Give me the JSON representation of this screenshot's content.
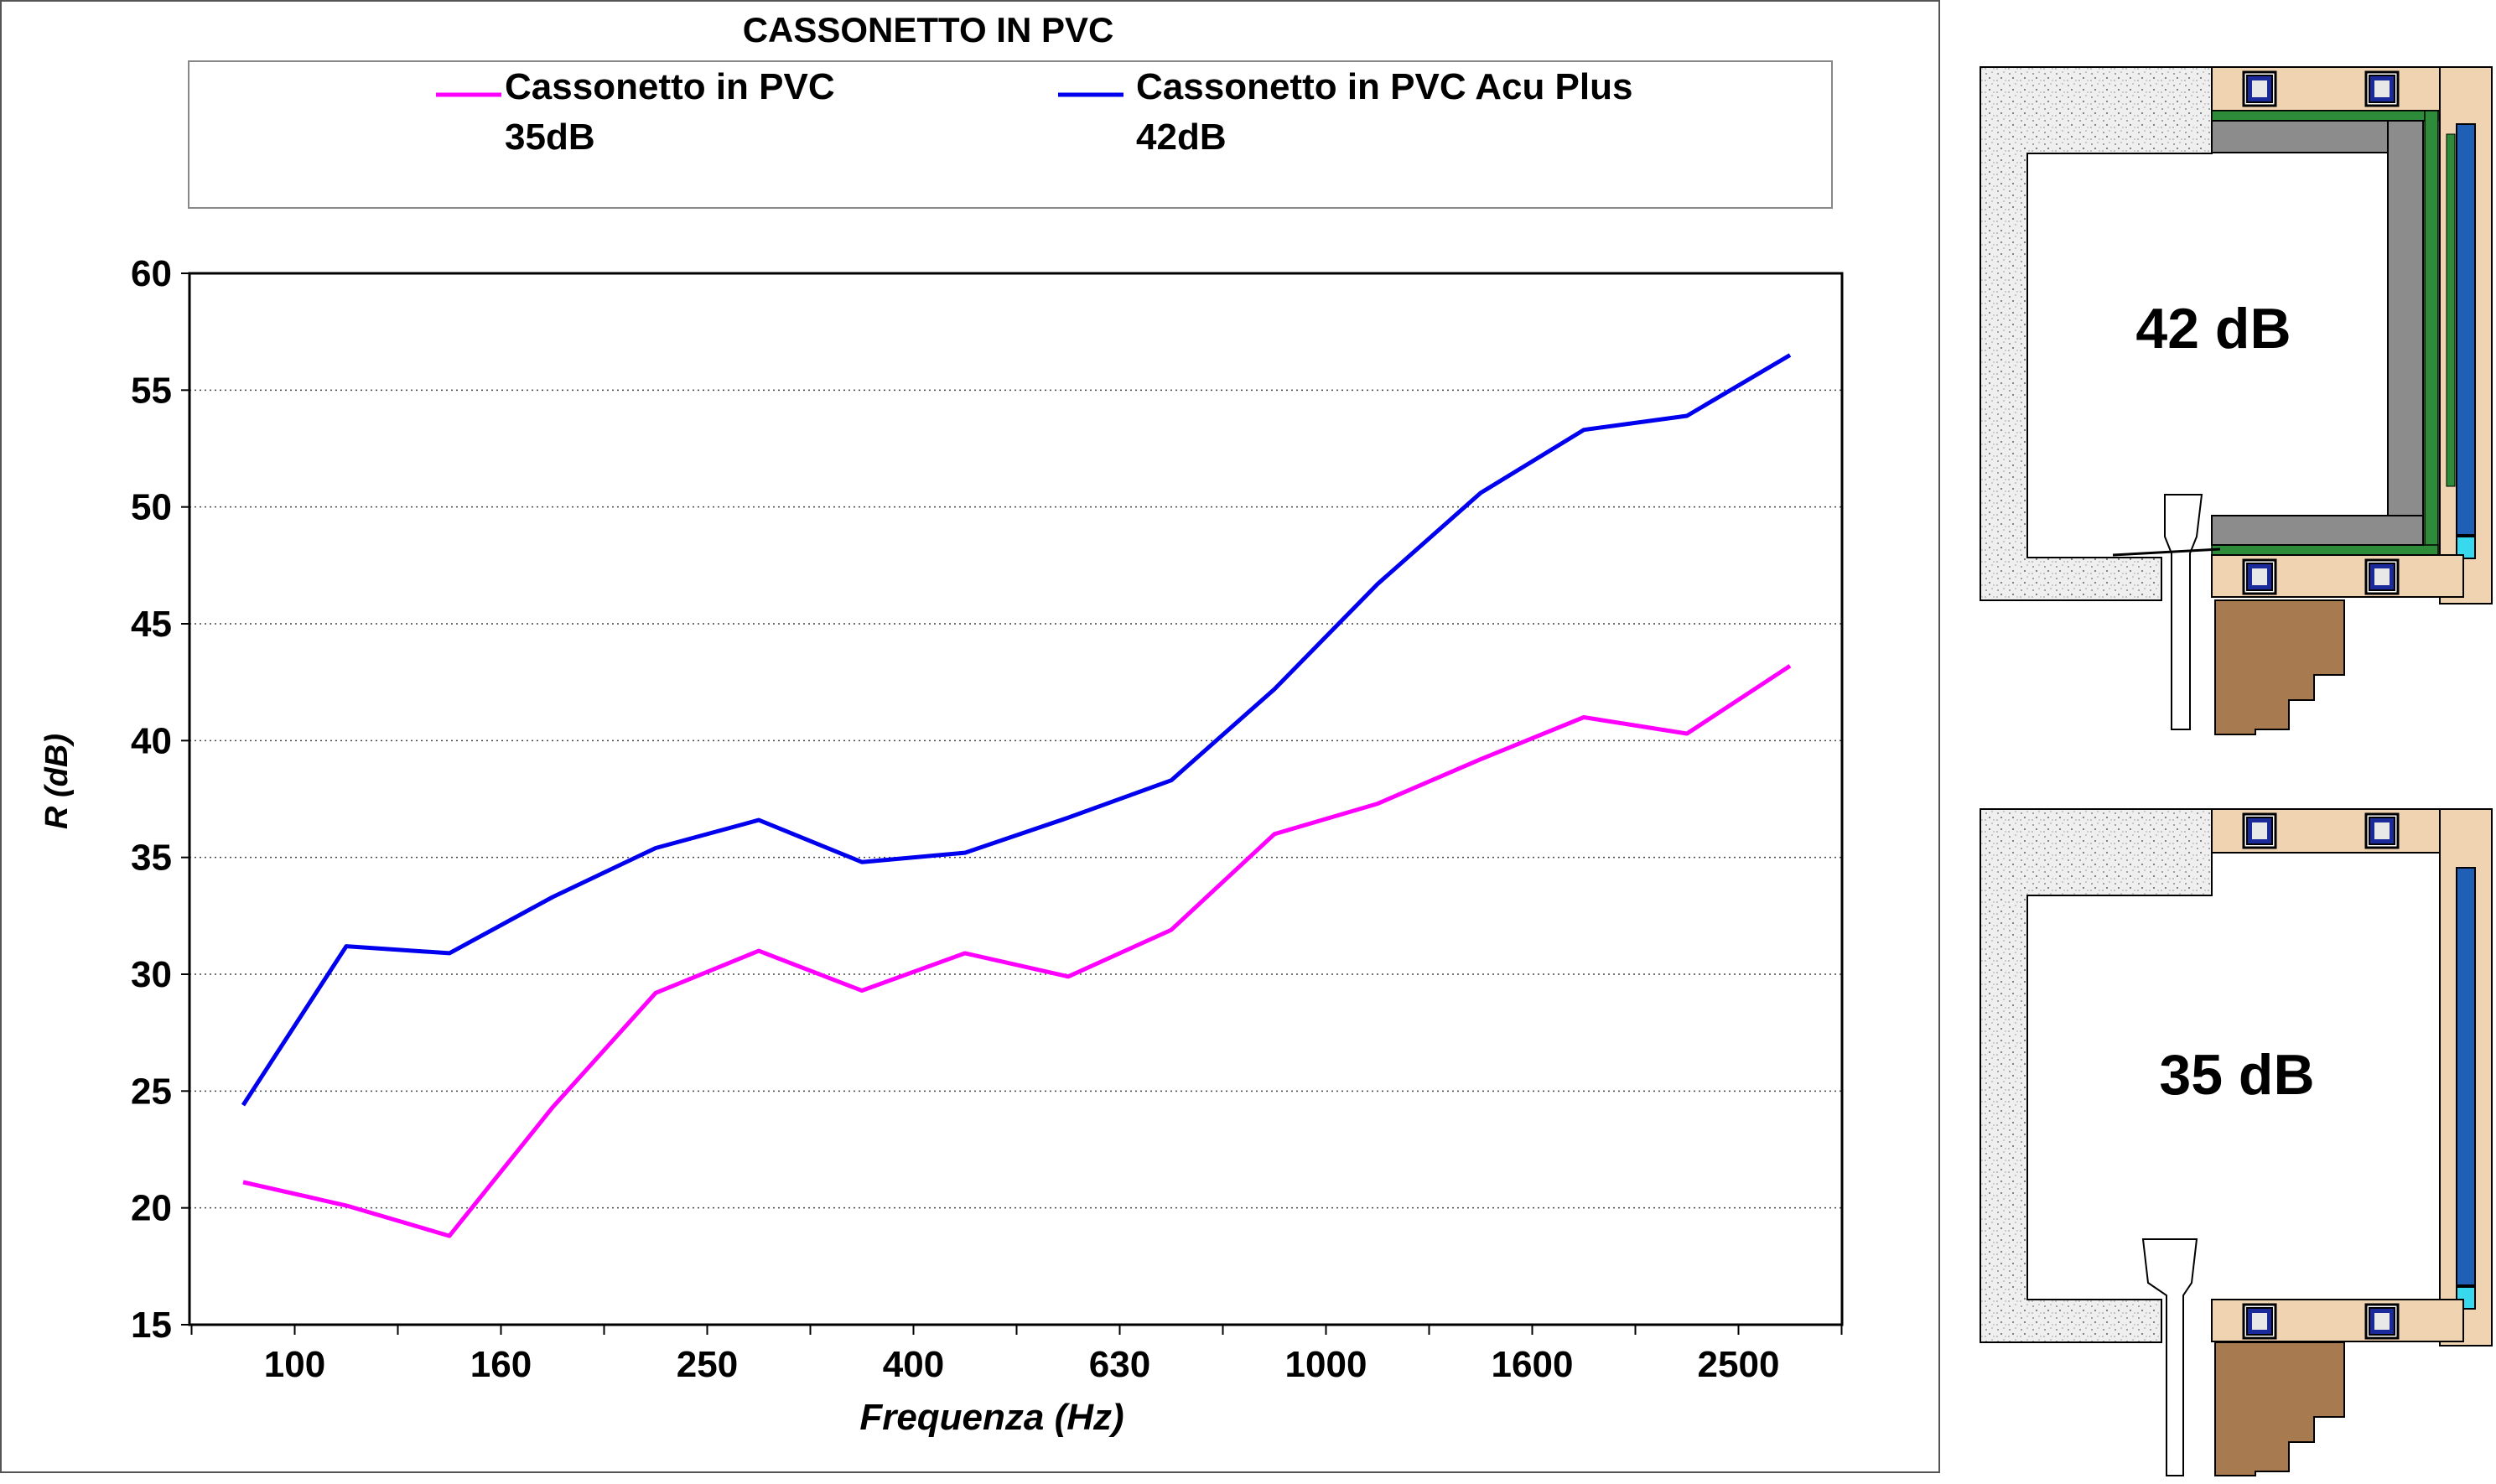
{
  "chart_data": {
    "type": "line",
    "title": "CASSONETTO IN PVC",
    "xlabel": "Frequenza (Hz)",
    "ylabel": "R (dB)",
    "x_tick_labels": [
      "100",
      "160",
      "250",
      "400",
      "630",
      "1000",
      "1600",
      "2500"
    ],
    "y_tick_labels": [
      "15",
      "20",
      "25",
      "30",
      "35",
      "40",
      "45",
      "50",
      "55",
      "60"
    ],
    "ylim": [
      15,
      60
    ],
    "grid": "horizontal dotted",
    "legend": "top",
    "x": [
      100,
      125,
      160,
      200,
      250,
      315,
      400,
      500,
      630,
      800,
      1000,
      1250,
      1600,
      2000,
      2500,
      3150
    ],
    "series": [
      {
        "name": "Cassonetto in PVC",
        "name_line2": "35dB",
        "color": "#ff00ff",
        "values": [
          21.1,
          20.1,
          18.8,
          24.3,
          29.2,
          31.0,
          29.3,
          30.9,
          29.9,
          31.9,
          36.0,
          37.3,
          39.2,
          41.0,
          40.3,
          43.2
        ]
      },
      {
        "name": "Cassonetto in PVC Acu Plus",
        "name_line2": "42dB",
        "color": "#0000ee",
        "values": [
          24.4,
          31.2,
          30.9,
          33.3,
          35.4,
          36.6,
          34.8,
          35.2,
          36.7,
          38.3,
          42.2,
          46.7,
          50.6,
          53.3,
          53.9,
          56.5
        ]
      }
    ]
  },
  "diagrams": [
    {
      "label": "42 dB"
    },
    {
      "label": "35 dB"
    }
  ]
}
